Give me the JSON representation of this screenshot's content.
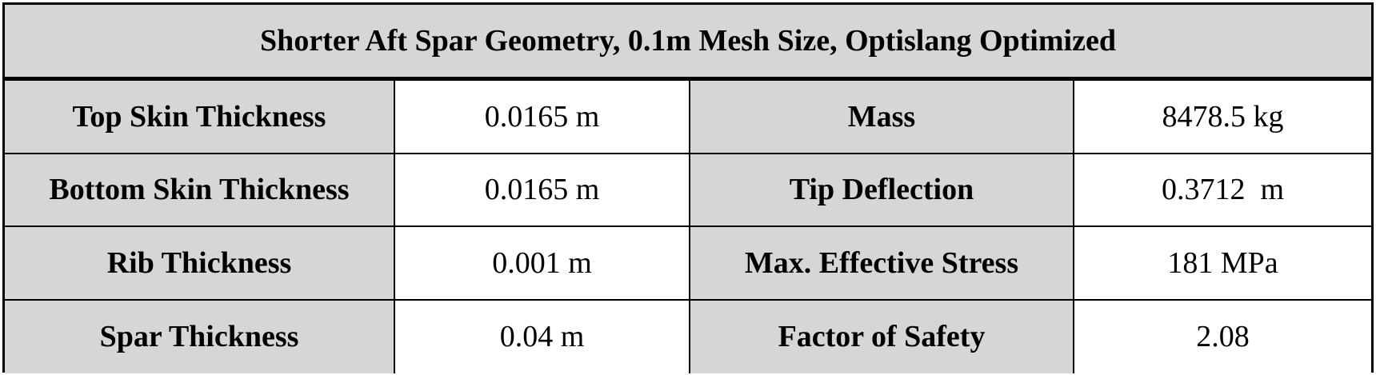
{
  "table": {
    "title": "Shorter Aft Spar Geometry, 0.1m Mesh Size, Optislang Optimized",
    "rows": [
      {
        "label_left": "Top Skin Thickness",
        "value_left": "0.0165 m",
        "label_right": "Mass",
        "value_right": "8478.5 kg"
      },
      {
        "label_left": "Bottom Skin Thickness",
        "value_left": "0.0165 m",
        "label_right": "Tip Deflection",
        "value_right": "0.3712  m"
      },
      {
        "label_left": "Rib Thickness",
        "value_left": "0.001 m",
        "label_right": "Max. Effective Stress",
        "value_right": "181 MPa"
      },
      {
        "label_left": "Spar Thickness",
        "value_left": "0.04 m",
        "label_right": "Factor of Safety",
        "value_right": "2.08"
      }
    ],
    "colors": {
      "header_bg": "#d6d6d6",
      "label_bg": "#d6d6d6",
      "value_bg": "#ffffff",
      "border": "#000000"
    }
  }
}
